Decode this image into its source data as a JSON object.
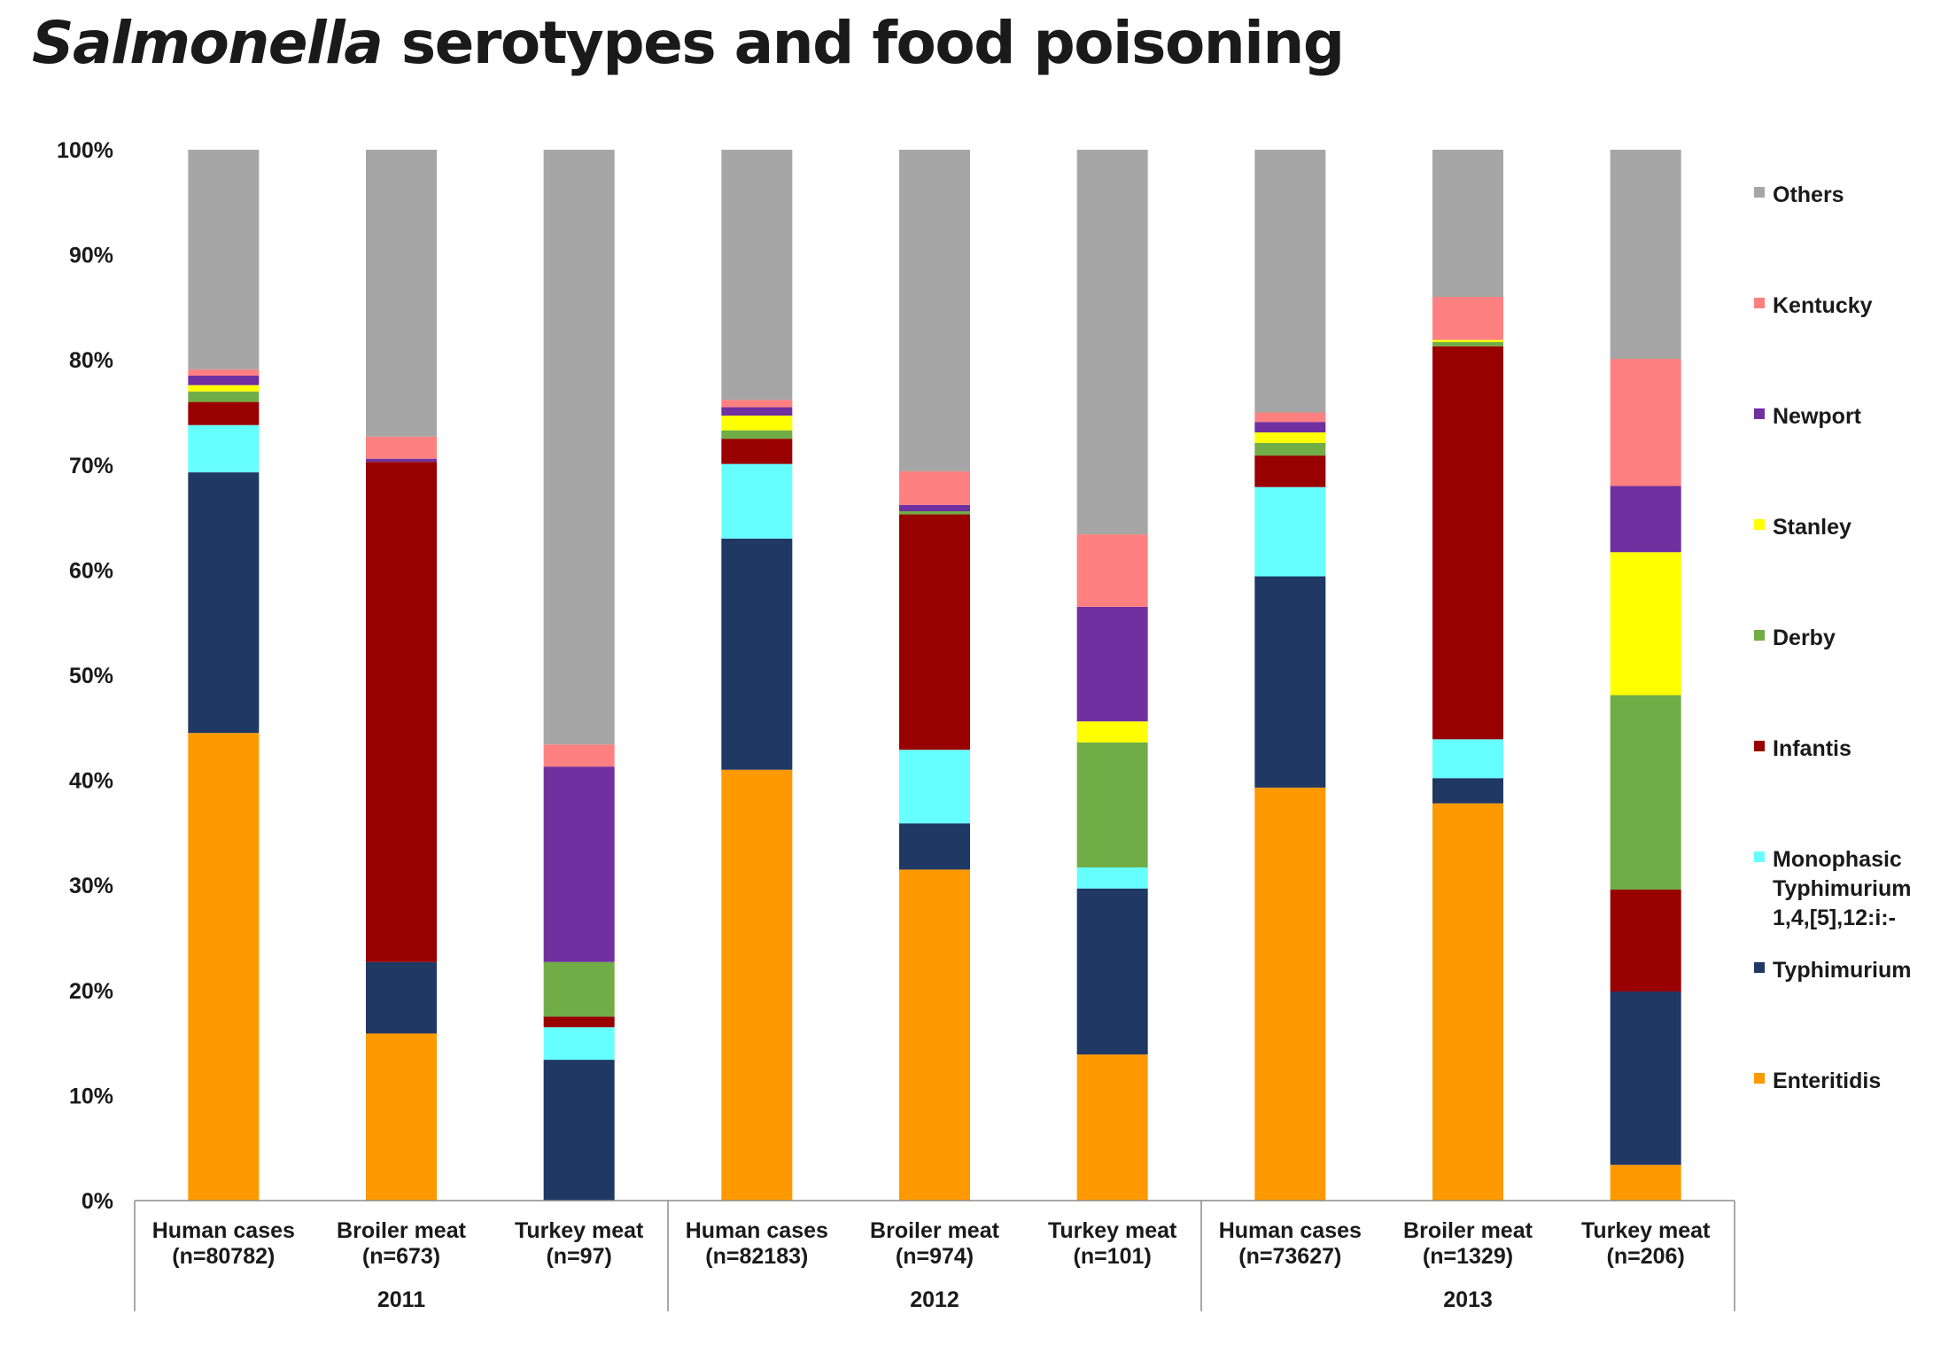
{
  "title": {
    "italic_part": "Salmonella",
    "rest": " serotypes and food poisoning"
  },
  "chart_data": {
    "type": "bar",
    "stacked": true,
    "title": "Salmonella serotypes and food poisoning",
    "xlabel": "",
    "ylabel": "",
    "ylim": [
      0,
      100
    ],
    "y_ticks": [
      "0%",
      "10%",
      "20%",
      "30%",
      "40%",
      "50%",
      "60%",
      "70%",
      "80%",
      "90%",
      "100%"
    ],
    "legend_position": "right",
    "groups": [
      {
        "label": "2011",
        "count": 3
      },
      {
        "label": "2012",
        "count": 3
      },
      {
        "label": "2013",
        "count": 3
      }
    ],
    "categories": [
      {
        "name": "Human cases",
        "n": "(n=80782)",
        "year": "2011"
      },
      {
        "name": "Broiler meat",
        "n": "(n=673)",
        "year": "2011"
      },
      {
        "name": "Turkey meat",
        "n": "(n=97)",
        "year": "2011"
      },
      {
        "name": "Human cases",
        "n": "(n=82183)",
        "year": "2012"
      },
      {
        "name": "Broiler meat",
        "n": "(n=974)",
        "year": "2012"
      },
      {
        "name": "Turkey meat",
        "n": "(n=101)",
        "year": "2012"
      },
      {
        "name": "Human cases",
        "n": "(n=73627)",
        "year": "2013"
      },
      {
        "name": "Broiler meat",
        "n": "(n=1329)",
        "year": "2013"
      },
      {
        "name": "Turkey meat",
        "n": "(n=206)",
        "year": "2013"
      }
    ],
    "series": [
      {
        "name": "Enteritidis",
        "color": "#FF9900",
        "values": [
          44.5,
          15.9,
          0,
          41.0,
          31.5,
          13.9,
          39.3,
          37.8,
          3.4
        ]
      },
      {
        "name": "Typhimurium",
        "color": "#1F3864",
        "values": [
          24.8,
          6.8,
          13.4,
          22.0,
          4.4,
          15.8,
          20.1,
          2.4,
          16.5
        ]
      },
      {
        "name": "Monophasic Typhimurium 1,4,[5],12:i:-",
        "label_lines": [
          "Monophasic",
          "Typhimurium",
          "1,4,[5],12:i:-"
        ],
        "color": "#66FFFF",
        "values": [
          4.5,
          0,
          3.1,
          7.1,
          7.0,
          2.0,
          8.5,
          3.7,
          0
        ]
      },
      {
        "name": "Infantis",
        "color": "#990000",
        "values": [
          2.2,
          47.6,
          1.0,
          2.4,
          22.4,
          0,
          3.0,
          37.4,
          9.7
        ]
      },
      {
        "name": "Derby",
        "color": "#70AD47",
        "values": [
          1.0,
          0,
          5.2,
          0.8,
          0.3,
          11.9,
          1.2,
          0.4,
          18.5
        ]
      },
      {
        "name": "Stanley",
        "color": "#FFFF00",
        "values": [
          0.6,
          0,
          0,
          1.4,
          0,
          2.0,
          1.0,
          0.2,
          13.6
        ]
      },
      {
        "name": "Newport",
        "color": "#7030A0",
        "values": [
          0.9,
          0.3,
          18.6,
          0.8,
          0.6,
          10.9,
          1.0,
          0,
          6.3
        ]
      },
      {
        "name": "Kentucky",
        "color": "#FF8080",
        "values": [
          0.6,
          2.1,
          2.1,
          0.7,
          3.2,
          6.9,
          0.9,
          4.1,
          12.1
        ]
      },
      {
        "name": "Others",
        "color": "#A6A6A6",
        "values": [
          20.9,
          27.3,
          56.6,
          23.8,
          30.6,
          36.6,
          25.0,
          14.0,
          19.9
        ]
      }
    ]
  }
}
